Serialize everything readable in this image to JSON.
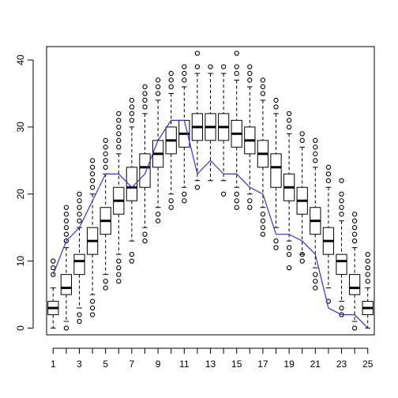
{
  "chart_data": {
    "type": "box",
    "title": "",
    "xlabel": "",
    "ylabel": "",
    "categories": [
      "1",
      "2",
      "3",
      "4",
      "5",
      "6",
      "7",
      "8",
      "9",
      "10",
      "11",
      "12",
      "13",
      "14",
      "15",
      "16",
      "17",
      "18",
      "19",
      "20",
      "21",
      "22",
      "23",
      "24",
      "25"
    ],
    "x_tick_labels": [
      "1",
      "3",
      "5",
      "7",
      "9",
      "11",
      "13",
      "15",
      "17",
      "19",
      "21",
      "23",
      "25"
    ],
    "y_ticks": [
      0,
      10,
      20,
      30,
      40
    ],
    "ylim": [
      -1,
      42
    ],
    "grid": false,
    "box_color": "#000000",
    "line_color": "#3333dd",
    "boxes": [
      {
        "lo": 0,
        "q1": 2,
        "med": 3,
        "q3": 4,
        "hi": 6,
        "outliers": [
          8,
          9,
          10
        ]
      },
      {
        "lo": 1,
        "q1": 5,
        "med": 6,
        "q3": 8,
        "hi": 12,
        "outliers": [
          0,
          13,
          14,
          15,
          16,
          17,
          18
        ]
      },
      {
        "lo": 3,
        "q1": 8,
        "med": 10,
        "q3": 11,
        "hi": 15,
        "outliers": [
          1,
          2,
          16,
          17,
          18,
          19,
          20
        ]
      },
      {
        "lo": 5,
        "q1": 11,
        "med": 13,
        "q3": 15,
        "hi": 20,
        "outliers": [
          2,
          3,
          4,
          21,
          22,
          23,
          24,
          25
        ]
      },
      {
        "lo": 8,
        "q1": 14,
        "med": 16,
        "q3": 18,
        "hi": 23,
        "outliers": [
          6,
          7,
          24,
          25,
          26,
          27,
          28
        ]
      },
      {
        "lo": 11,
        "q1": 17,
        "med": 19,
        "q3": 21,
        "hi": 26,
        "outliers": [
          7,
          8,
          9,
          10,
          27,
          28,
          29,
          30,
          31,
          32
        ]
      },
      {
        "lo": 13,
        "q1": 19,
        "med": 21,
        "q3": 24,
        "hi": 30,
        "outliers": [
          10,
          11,
          31,
          32,
          33,
          34
        ]
      },
      {
        "lo": 15,
        "q1": 21,
        "med": 24,
        "q3": 26,
        "hi": 32,
        "outliers": [
          13,
          14,
          33,
          34,
          35,
          36
        ]
      },
      {
        "lo": 18,
        "q1": 24,
        "med": 26,
        "q3": 28,
        "hi": 34,
        "outliers": [
          16,
          17,
          35,
          36,
          37
        ]
      },
      {
        "lo": 20,
        "q1": 26,
        "med": 28,
        "q3": 30,
        "hi": 35,
        "outliers": [
          18,
          19,
          36,
          37,
          38
        ]
      },
      {
        "lo": 21,
        "q1": 27,
        "med": 29,
        "q3": 31,
        "hi": 36,
        "outliers": [
          19,
          20,
          37,
          38,
          39
        ]
      },
      {
        "lo": 22,
        "q1": 28,
        "med": 30,
        "q3": 32,
        "hi": 38,
        "outliers": [
          21,
          39,
          41
        ]
      },
      {
        "lo": 22,
        "q1": 28,
        "med": 30,
        "q3": 32,
        "hi": 38,
        "outliers": [
          39
        ]
      },
      {
        "lo": 22,
        "q1": 28,
        "med": 30,
        "q3": 32,
        "hi": 38,
        "outliers": [
          20,
          39
        ]
      },
      {
        "lo": 21,
        "q1": 27,
        "med": 29,
        "q3": 31,
        "hi": 37,
        "outliers": [
          18,
          19,
          20,
          38,
          39,
          41
        ]
      },
      {
        "lo": 20,
        "q1": 26,
        "med": 28,
        "q3": 30,
        "hi": 36,
        "outliers": [
          18,
          19,
          37,
          38,
          39
        ]
      },
      {
        "lo": 18,
        "q1": 24,
        "med": 26,
        "q3": 28,
        "hi": 34,
        "outliers": [
          14,
          15,
          16,
          17,
          35,
          36,
          37
        ]
      },
      {
        "lo": 15,
        "q1": 21,
        "med": 24,
        "q3": 26,
        "hi": 32,
        "outliers": [
          12,
          13,
          33,
          34
        ]
      },
      {
        "lo": 13,
        "q1": 19,
        "med": 21,
        "q3": 23,
        "hi": 29,
        "outliers": [
          9,
          11,
          12,
          30,
          31,
          32
        ]
      },
      {
        "lo": 11,
        "q1": 17,
        "med": 19,
        "q3": 21,
        "hi": 27,
        "outliers": [
          10,
          11,
          28,
          29
        ]
      },
      {
        "lo": 9,
        "q1": 14,
        "med": 16,
        "q3": 18,
        "hi": 24,
        "outliers": [
          6,
          7,
          8,
          25,
          26,
          27,
          28
        ]
      },
      {
        "lo": 6,
        "q1": 11,
        "med": 13,
        "q3": 15,
        "hi": 21,
        "outliers": [
          4,
          22,
          23,
          24
        ]
      },
      {
        "lo": 4,
        "q1": 8,
        "med": 10,
        "q3": 11,
        "hi": 16,
        "outliers": [
          2,
          3,
          17,
          18,
          19,
          20,
          22
        ]
      },
      {
        "lo": 1,
        "q1": 5,
        "med": 6,
        "q3": 8,
        "hi": 12,
        "outliers": [
          0,
          13,
          14,
          15,
          16,
          17
        ]
      },
      {
        "lo": 0,
        "q1": 2,
        "med": 3,
        "q3": 4,
        "hi": 6,
        "outliers": [
          7,
          8,
          9,
          10,
          11
        ]
      }
    ],
    "line_values": [
      8,
      13,
      15,
      19,
      23,
      23,
      21,
      23,
      28,
      31,
      31,
      23,
      25,
      23,
      23,
      21,
      20,
      14,
      14,
      13,
      11,
      3,
      2,
      2,
      0
    ]
  }
}
